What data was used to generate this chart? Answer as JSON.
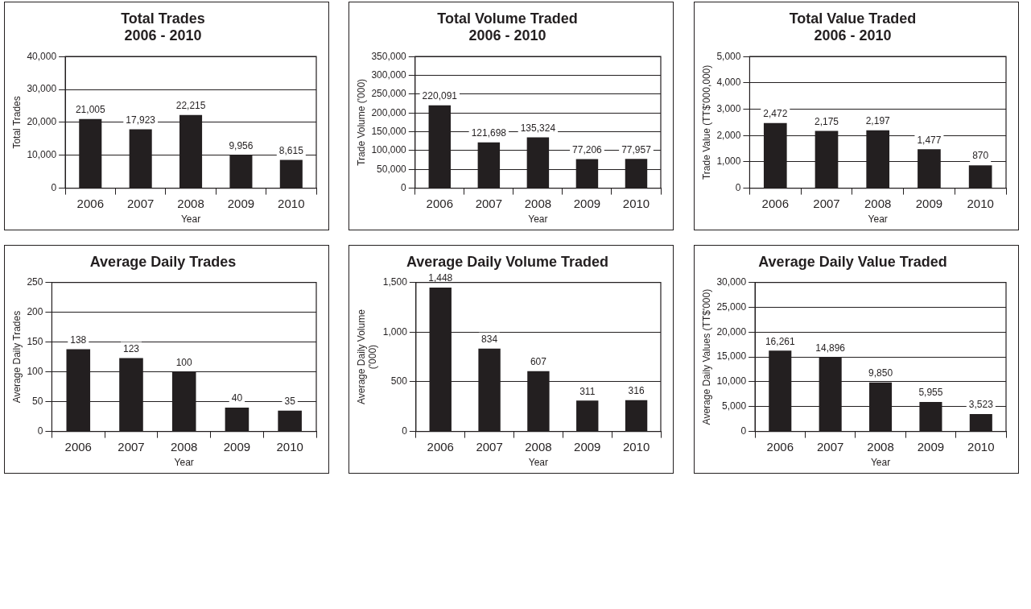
{
  "chart_data": [
    {
      "type": "bar",
      "title": "Total Trades\n2006 - 2010",
      "xlabel": "Year",
      "ylabel": "Total Trades",
      "categories": [
        "2006",
        "2007",
        "2008",
        "2009",
        "2010"
      ],
      "values": [
        21005,
        17923,
        22215,
        9956,
        8615
      ],
      "value_labels": [
        "21,005",
        "17,923",
        "22,215",
        "9,956",
        "8,615"
      ],
      "color": "#231f20",
      "ylim": [
        0,
        40000
      ],
      "yticks": [
        0,
        {
          "value": 10000,
          "label": "10,000"
        },
        {
          "value": 20000,
          "label": "20,000"
        },
        {
          "value": 30000,
          "label": "30,000"
        },
        {
          "value": 40000,
          "label": "40,000"
        }
      ],
      "grid": "y"
    },
    {
      "type": "bar",
      "title": "Total Volume Traded\n2006 - 2010",
      "xlabel": "Year",
      "ylabel": "Trade Volume ('000)",
      "categories": [
        "2006",
        "2007",
        "2008",
        "2009",
        "2010"
      ],
      "values": [
        220091,
        121698,
        135324,
        77206,
        77957
      ],
      "value_labels": [
        "220,091",
        "121,698",
        "135,324",
        "77,206",
        "77,957"
      ],
      "color": "#231f20",
      "ylim": [
        0,
        350000
      ],
      "yticks": [
        0,
        {
          "value": 50000,
          "label": "50,000"
        },
        {
          "value": 100000,
          "label": "100,000"
        },
        {
          "value": 150000,
          "label": "150,000"
        },
        {
          "value": 200000,
          "label": "200,000"
        },
        {
          "value": 250000,
          "label": "250,000"
        },
        {
          "value": 300000,
          "label": "300,000"
        },
        {
          "value": 350000,
          "label": "350,000"
        }
      ],
      "grid": "y"
    },
    {
      "type": "bar",
      "title": "Total Value Traded\n2006 - 2010",
      "xlabel": "Year",
      "ylabel": "Trade Value (TT$'000,000)",
      "categories": [
        "2006",
        "2007",
        "2008",
        "2009",
        "2010"
      ],
      "values": [
        2472,
        2175,
        2197,
        1477,
        870
      ],
      "value_labels": [
        "2,472",
        "2,175",
        "2,197",
        "1,477",
        "870"
      ],
      "color": "#231f20",
      "ylim": [
        0,
        5000
      ],
      "yticks": [
        0,
        {
          "value": 1000,
          "label": "1,000"
        },
        {
          "value": 2000,
          "label": "2,000"
        },
        {
          "value": 3000,
          "label": "3,000"
        },
        {
          "value": 4000,
          "label": "4,000"
        },
        {
          "value": 5000,
          "label": "5,000"
        }
      ],
      "grid": "y"
    },
    {
      "type": "bar",
      "title": "Average Daily Trades",
      "xlabel": "Year",
      "ylabel": "Average Daily Trades",
      "categories": [
        "2006",
        "2007",
        "2008",
        "2009",
        "2010"
      ],
      "values": [
        138,
        123,
        100,
        40,
        35
      ],
      "value_labels": [
        "138",
        "123",
        "100",
        "40",
        "35"
      ],
      "color": "#231f20",
      "ylim": [
        0,
        250
      ],
      "yticks": [
        0,
        50,
        100,
        150,
        200,
        250
      ],
      "grid": "y"
    },
    {
      "type": "bar",
      "title": "Average Daily Volume Traded",
      "xlabel": "Year",
      "ylabel": "Average Daily Volume\n('000)",
      "categories": [
        "2006",
        "2007",
        "2008",
        "2009",
        "2010"
      ],
      "values": [
        1448,
        834,
        607,
        311,
        316
      ],
      "value_labels": [
        "1,448",
        "834",
        "607",
        "311",
        "316"
      ],
      "color": "#231f20",
      "ylim": [
        0,
        1500
      ],
      "yticks": [
        0,
        500,
        {
          "value": 1000,
          "label": "1,000"
        },
        {
          "value": 1500,
          "label": "1,500"
        }
      ],
      "grid": "y"
    },
    {
      "type": "bar",
      "title": "Average Daily Value Traded",
      "xlabel": "Year",
      "ylabel": "Average Daily Values (TT$'000)",
      "categories": [
        "2006",
        "2007",
        "2008",
        "2009",
        "2010"
      ],
      "values": [
        16261,
        14896,
        9850,
        5955,
        3523
      ],
      "value_labels": [
        "16,261",
        "14,896",
        "9,850",
        "5,955",
        "3,523"
      ],
      "color": "#231f20",
      "ylim": [
        0,
        30000
      ],
      "yticks": [
        0,
        {
          "value": 5000,
          "label": "5,000"
        },
        {
          "value": 10000,
          "label": "10,000"
        },
        {
          "value": 15000,
          "label": "15,000"
        },
        {
          "value": 20000,
          "label": "20,000"
        },
        {
          "value": 25000,
          "label": "25,000"
        },
        {
          "value": 30000,
          "label": "30,000"
        }
      ],
      "grid": "y"
    }
  ]
}
